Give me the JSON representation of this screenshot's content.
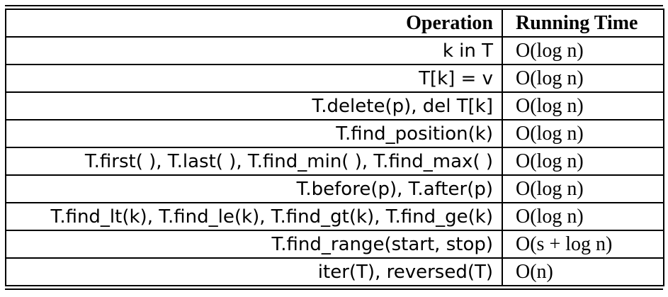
{
  "table": {
    "headers": {
      "operation": "Operation",
      "running_time": "Running Time"
    },
    "rows": [
      {
        "operation": "k in T",
        "running_time": "O(log n)"
      },
      {
        "operation": "T[k] = v",
        "running_time": "O(log n)"
      },
      {
        "operation": "T.delete(p), del T[k]",
        "running_time": "O(log n)"
      },
      {
        "operation": "T.find_position(k)",
        "running_time": "O(log n)"
      },
      {
        "operation": "T.first( ), T.last( ), T.find_min( ), T.find_max( )",
        "running_time": "O(log n)"
      },
      {
        "operation": "T.before(p), T.after(p)",
        "running_time": "O(log n)"
      },
      {
        "operation": "T.find_lt(k), T.find_le(k), T.find_gt(k), T.find_ge(k)",
        "running_time": "O(log n)"
      },
      {
        "operation": "T.find_range(start, stop)",
        "running_time": "O(s + log n)"
      },
      {
        "operation": "iter(T), reversed(T)",
        "running_time": "O(n)"
      }
    ]
  }
}
